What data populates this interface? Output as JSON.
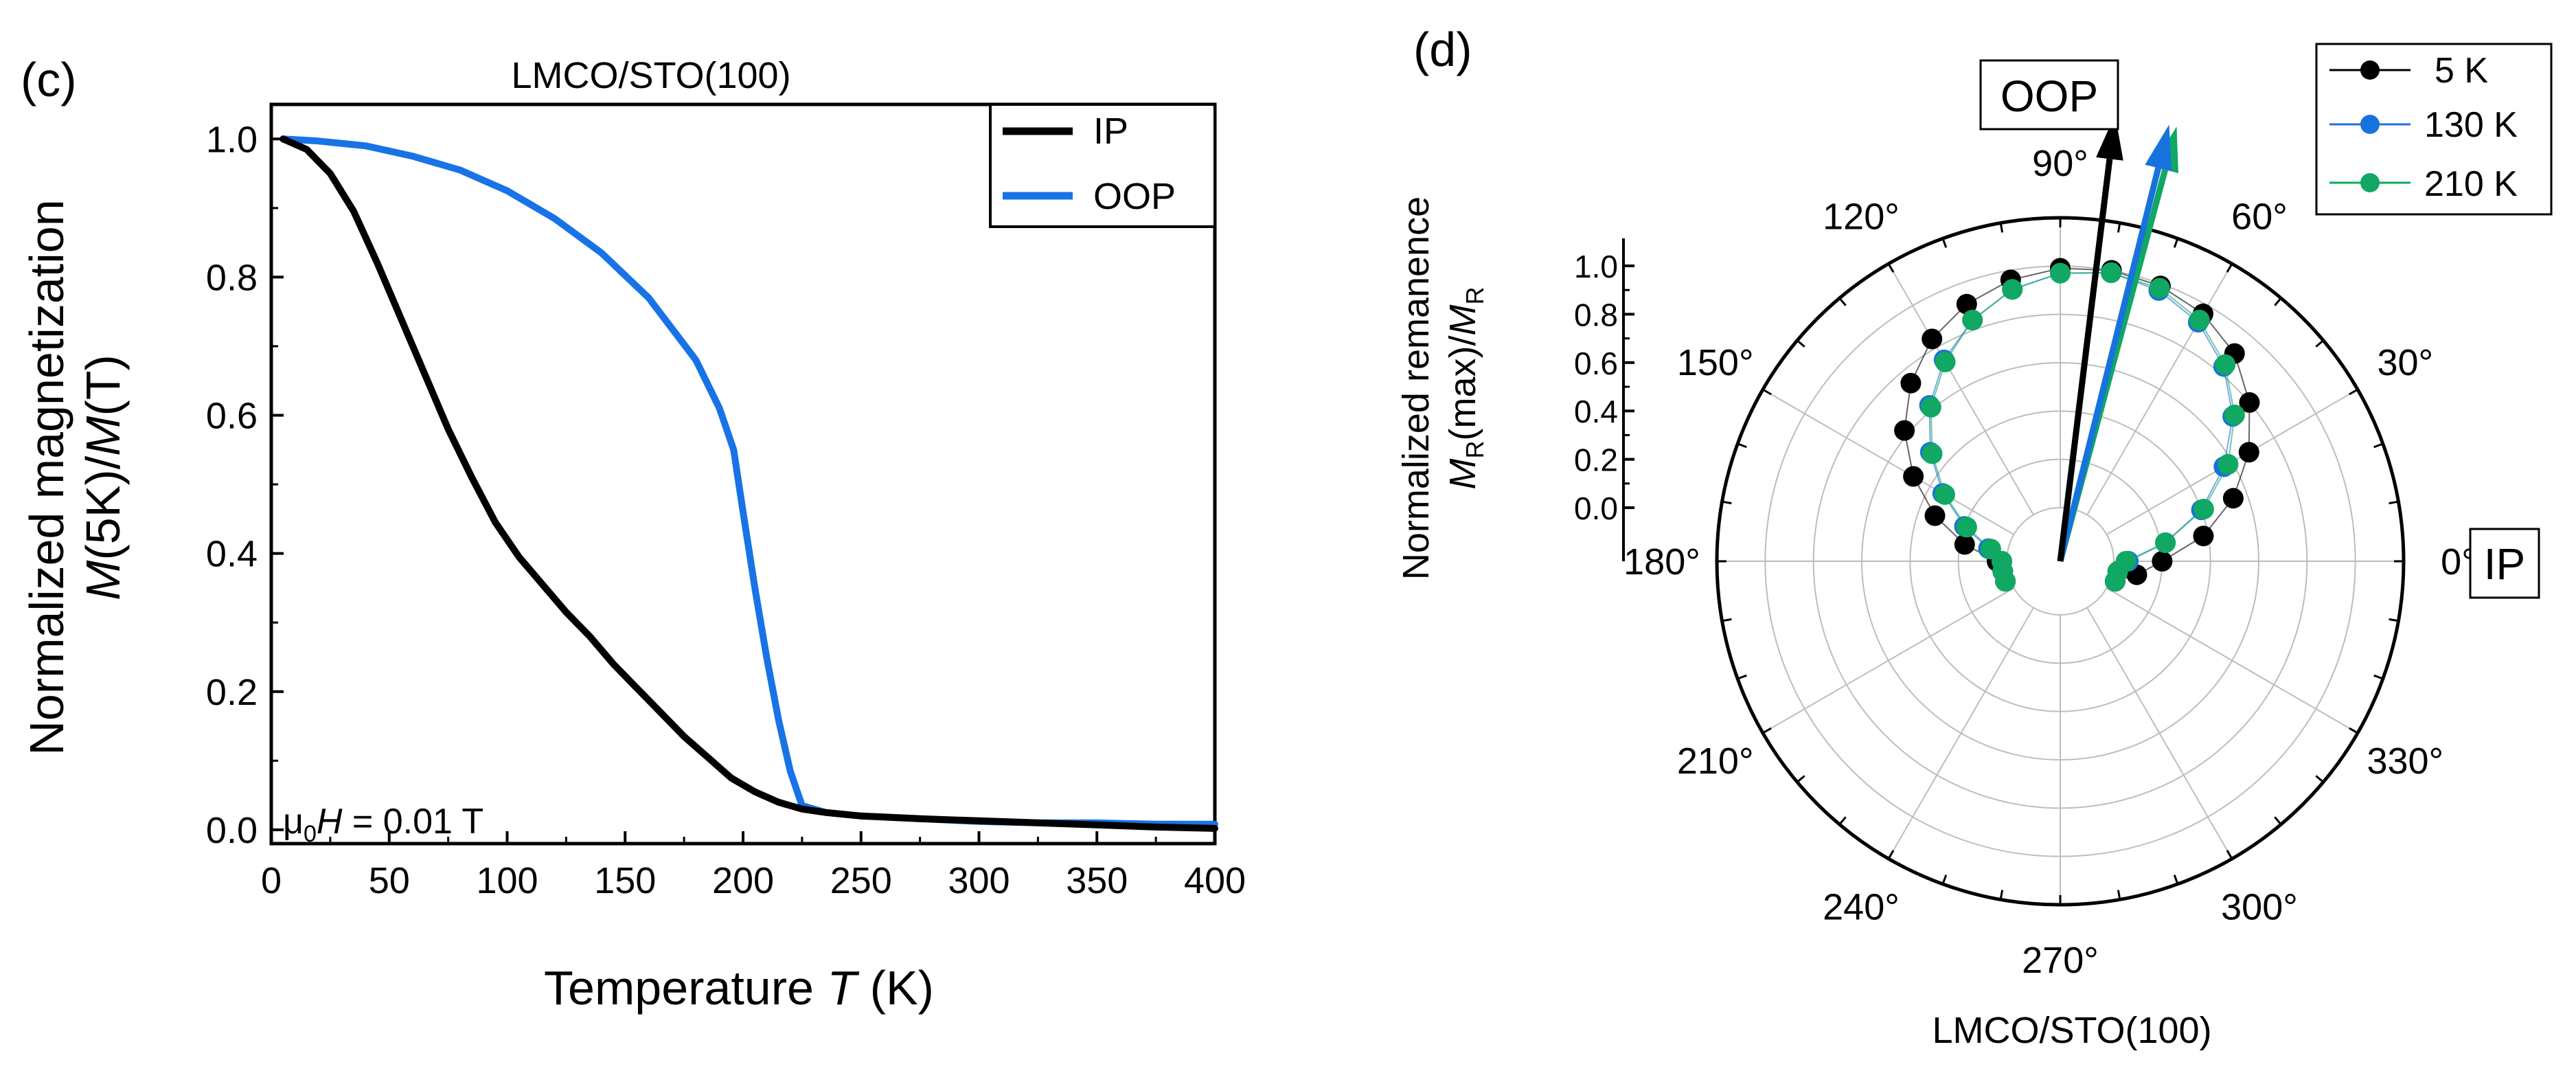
{
  "colors": {
    "ip": "#000000",
    "oop": "#1873e6",
    "k5": "#000000",
    "k130": "#1872dd",
    "k210": "#10a862"
  },
  "chart_data": [
    {
      "type": "line",
      "panel_label": "(c)",
      "title": "LMCO/STO(100)",
      "xlabel_main": "Temperature ",
      "xlabel_var": "T",
      "xlabel_unit": " (K)",
      "ylabel_line1": "Normalized magnetization",
      "ylabel_m1": "M",
      "ylabel_mid": "(5K)/",
      "ylabel_m2": "M",
      "ylabel_end": "(T)",
      "xlim": [
        0,
        400
      ],
      "ylim": [
        -0.02,
        1.05
      ],
      "xticks": [
        0,
        50,
        100,
        150,
        200,
        250,
        300,
        350,
        400
      ],
      "yticks": [
        0.0,
        0.2,
        0.4,
        0.6,
        0.8,
        1.0
      ],
      "annotation": {
        "mu": "μ",
        "sub": "0",
        "var": "H",
        "rest": " = 0.01 T"
      },
      "legend": [
        "IP",
        "OOP"
      ],
      "series": [
        {
          "name": "IP",
          "color": "#000000",
          "x": [
            5,
            15,
            25,
            35,
            45,
            55,
            65,
            75,
            85,
            95,
            105,
            115,
            125,
            135,
            145,
            155,
            165,
            175,
            185,
            195,
            205,
            215,
            225,
            235,
            250,
            275,
            300,
            325,
            350,
            375,
            400
          ],
          "y": [
            1.0,
            0.985,
            0.95,
            0.895,
            0.82,
            0.74,
            0.66,
            0.58,
            0.51,
            0.445,
            0.395,
            0.355,
            0.315,
            0.28,
            0.24,
            0.205,
            0.17,
            0.135,
            0.105,
            0.075,
            0.055,
            0.04,
            0.03,
            0.025,
            0.02,
            0.016,
            0.013,
            0.01,
            0.007,
            0.004,
            0.002
          ]
        },
        {
          "name": "OOP",
          "color": "#1873e6",
          "x": [
            5,
            20,
            40,
            60,
            80,
            100,
            120,
            140,
            160,
            180,
            190,
            196,
            200,
            205,
            210,
            215,
            220,
            225,
            235,
            250,
            275,
            300,
            325,
            350,
            375,
            400
          ],
          "y": [
            1.0,
            0.997,
            0.99,
            0.975,
            0.955,
            0.925,
            0.885,
            0.835,
            0.77,
            0.68,
            0.61,
            0.55,
            0.46,
            0.35,
            0.25,
            0.16,
            0.085,
            0.035,
            0.025,
            0.02,
            0.016,
            0.012,
            0.01,
            0.01,
            0.008,
            0.008
          ]
        }
      ]
    },
    {
      "type": "scatter",
      "subtype": "polar",
      "panel_label": "(d)",
      "bottom_title": "LMCO/STO(100)",
      "ylabel_line1": "Normalized remanence",
      "ylabel_m1": "M",
      "ylabel_m1sub": "R",
      "ylabel_mid": "(max)/",
      "ylabel_m2": "M",
      "ylabel_m2sub": "R",
      "radial_ticks": [
        0.0,
        0.2,
        0.4,
        0.6,
        0.8,
        1.0
      ],
      "radial_range": [
        0,
        1.0
      ],
      "angle_labels": [
        "0°",
        "30°",
        "60°",
        "90°",
        "120°",
        "150°",
        "180°",
        "210°",
        "240°",
        "270°",
        "300°",
        "330°"
      ],
      "boxed_labels": {
        "oop": "OOP",
        "ip": "IP"
      },
      "legend": [
        "5 K",
        "130 K",
        "210 K"
      ],
      "series": [
        {
          "name": "5 K",
          "color": "#000000",
          "easy_axis_deg": 83,
          "angles": [
            -20,
            -10,
            0,
            10,
            20,
            30,
            40,
            50,
            60,
            70,
            80,
            90,
            100,
            110,
            120,
            130,
            140,
            150,
            160,
            170,
            180,
            190,
            200
          ],
          "values": [
            0.02,
            0.1,
            0.2,
            0.38,
            0.54,
            0.68,
            0.8,
            0.9,
            0.96,
            0.99,
            1.0,
            0.99,
            0.96,
            0.91,
            0.84,
            0.74,
            0.62,
            0.48,
            0.33,
            0.18,
            0.04,
            0.02,
            0.02
          ]
        },
        {
          "name": "130 K",
          "color": "#1872dd",
          "easy_axis_deg": 76,
          "angles": [
            -20,
            -10,
            0,
            10,
            20,
            30,
            40,
            50,
            60,
            70,
            80,
            90,
            100,
            110,
            120,
            130,
            140,
            150,
            160,
            170,
            180,
            190,
            200
          ],
          "values": [
            0.02,
            0.02,
            0.06,
            0.22,
            0.4,
            0.56,
            0.71,
            0.83,
            0.92,
            0.97,
            0.99,
            0.97,
            0.92,
            0.84,
            0.74,
            0.62,
            0.48,
            0.34,
            0.2,
            0.08,
            0.02,
            0.02,
            0.02
          ]
        },
        {
          "name": "210 K",
          "color": "#10a862",
          "easy_axis_deg": 75,
          "angles": [
            -20,
            -10,
            0,
            10,
            20,
            30,
            40,
            50,
            60,
            70,
            80,
            90,
            100,
            110,
            120,
            130,
            140,
            150,
            160,
            170,
            180,
            190,
            200
          ],
          "values": [
            0.02,
            0.02,
            0.05,
            0.22,
            0.41,
            0.58,
            0.72,
            0.84,
            0.93,
            0.98,
            0.99,
            0.97,
            0.92,
            0.84,
            0.73,
            0.61,
            0.47,
            0.33,
            0.19,
            0.07,
            0.02,
            0.02,
            0.02
          ]
        }
      ]
    }
  ]
}
